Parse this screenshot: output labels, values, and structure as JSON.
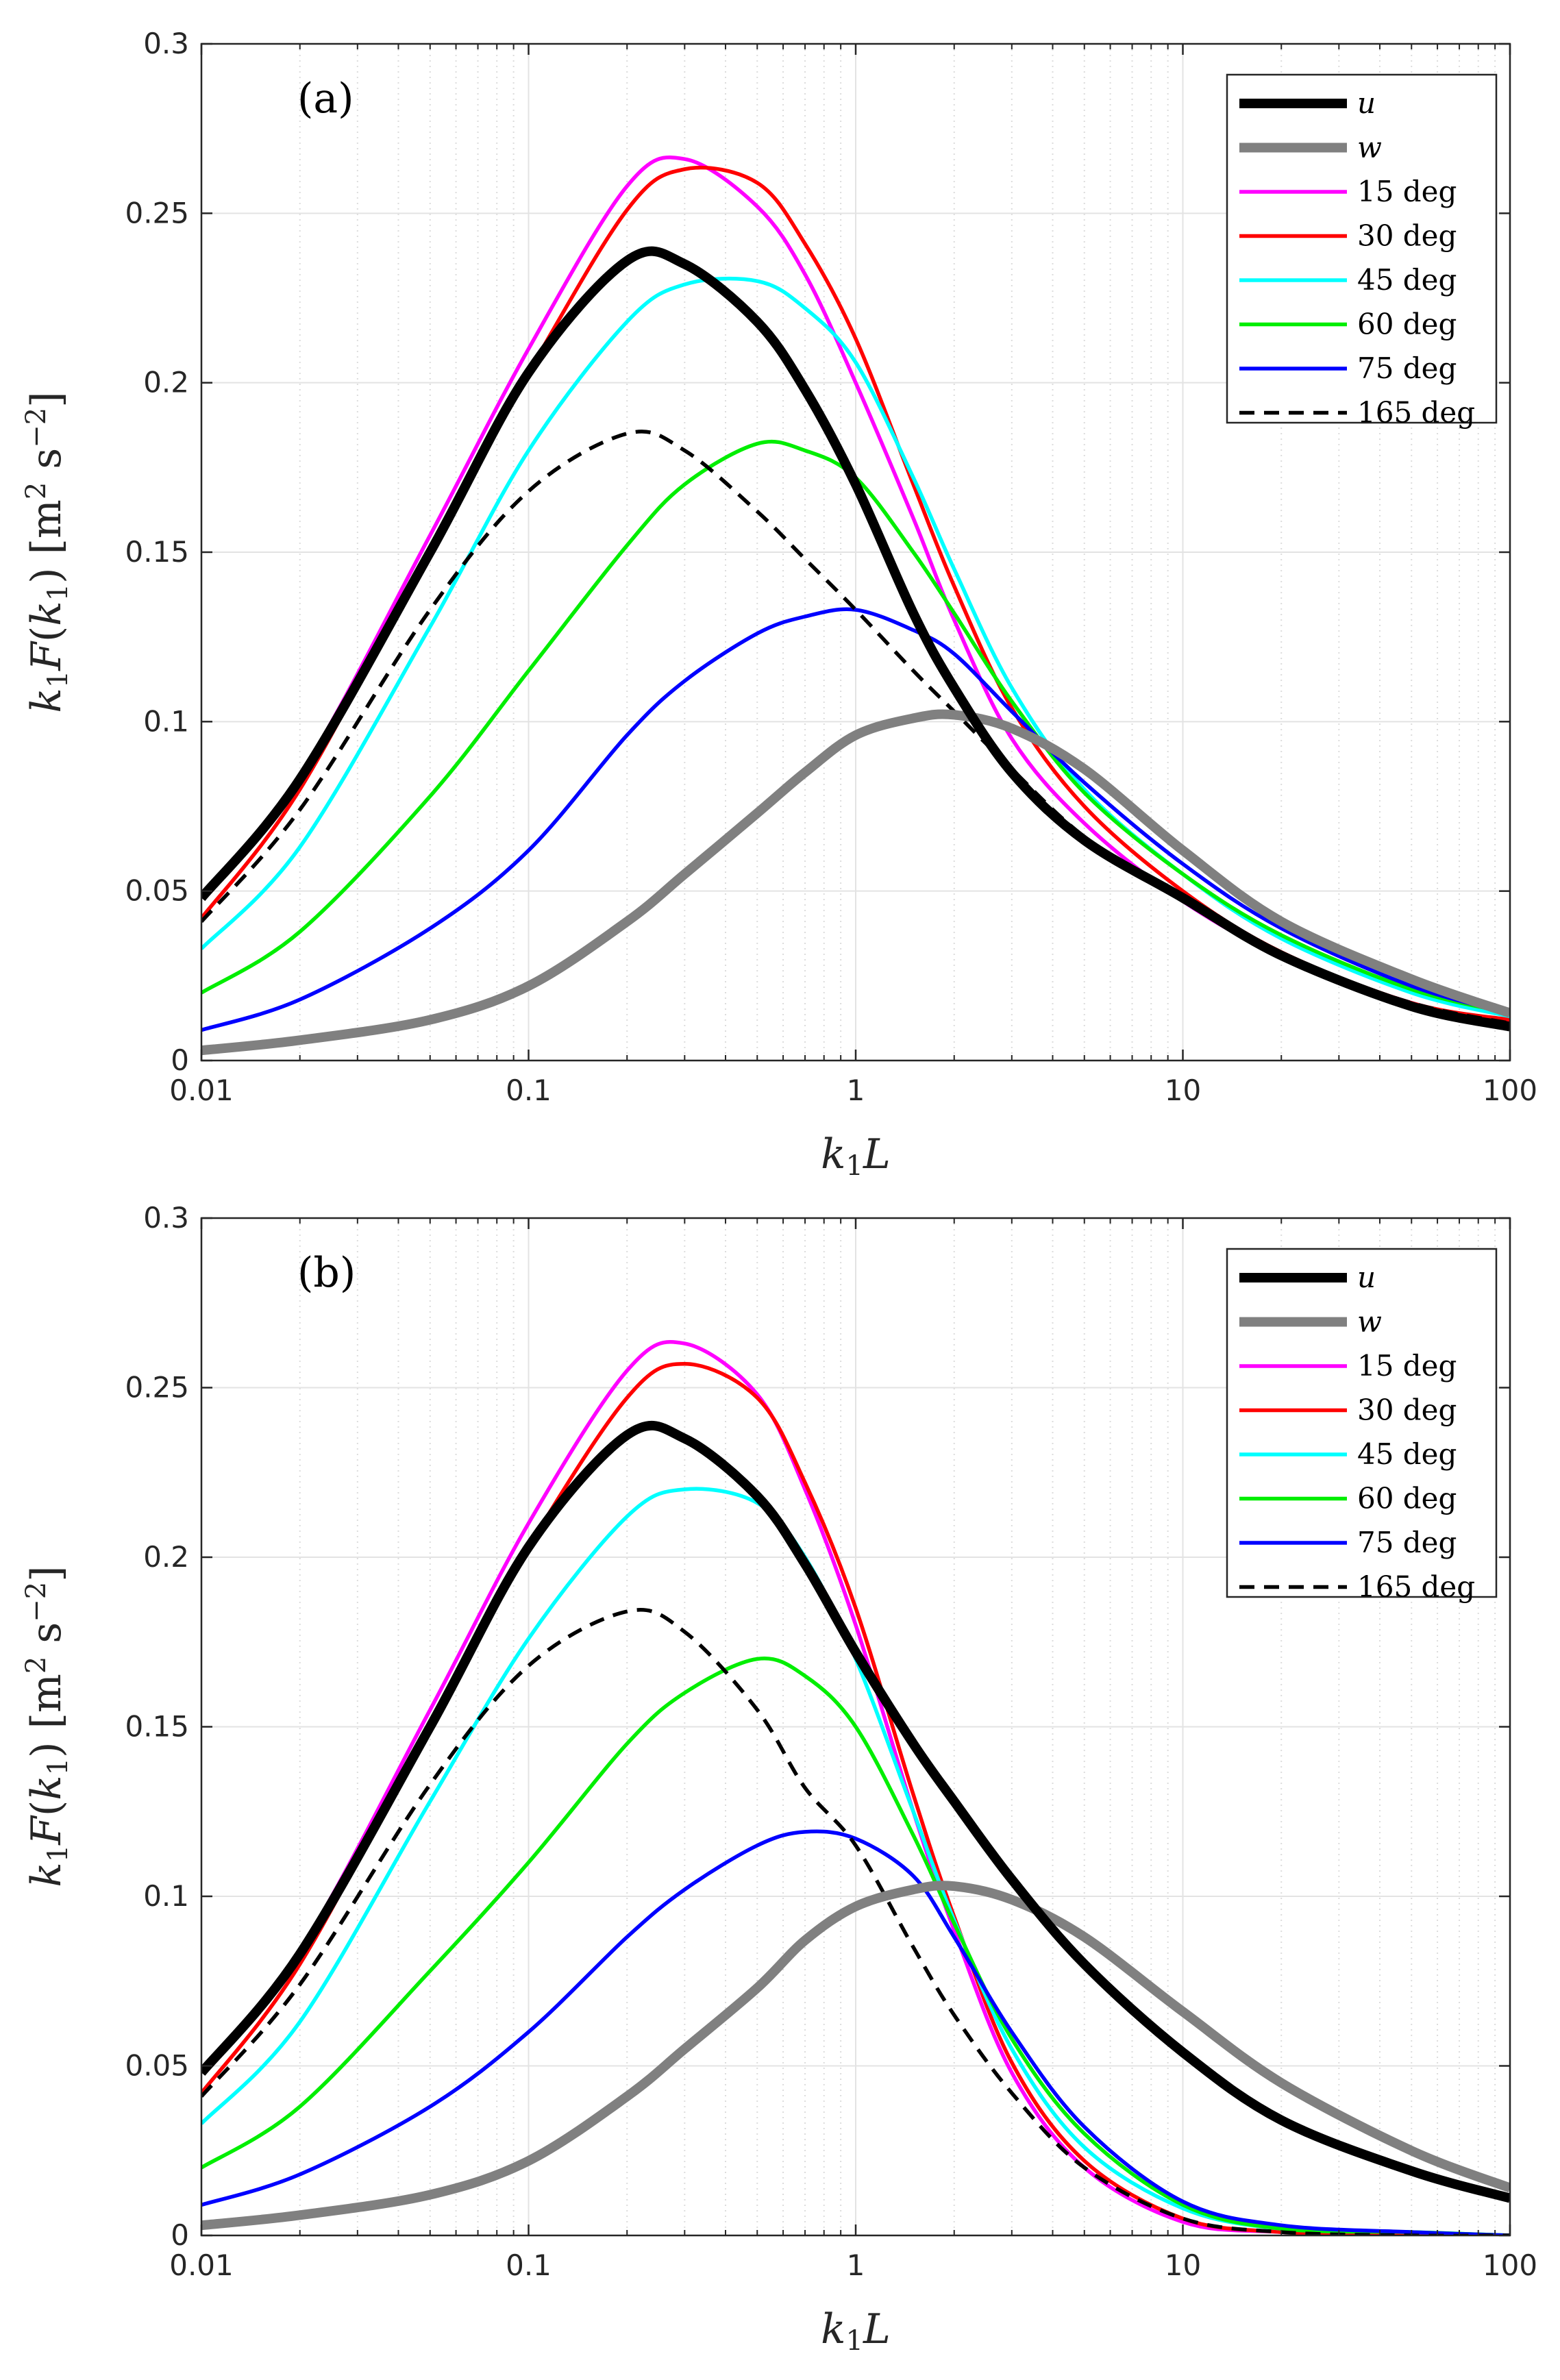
{
  "chart_data": [
    {
      "type": "line",
      "panel_label": "(a)",
      "x_scale": "log",
      "xlim": [
        0.01,
        100
      ],
      "ylim": [
        0,
        0.3
      ],
      "xlabel": "k1L",
      "ylabel": "k1F(k1) [m2 s-2]",
      "xticks": [
        "0.01",
        "0.1",
        "1",
        "10",
        "100"
      ],
      "yticks": [
        "0",
        "0.05",
        "0.1",
        "0.15",
        "0.2",
        "0.25",
        "0.3"
      ],
      "grid": true,
      "legend_position": "top-right",
      "x": [
        0.01,
        0.02,
        0.05,
        0.1,
        0.2,
        0.3,
        0.5,
        0.7,
        1,
        1.5,
        2,
        3,
        5,
        10,
        20,
        50,
        100
      ],
      "series": [
        {
          "name": "u",
          "color": "#000000",
          "width": "thick",
          "dash": "solid",
          "values": [
            0.048,
            0.083,
            0.15,
            0.203,
            0.236,
            0.235,
            0.218,
            0.198,
            0.17,
            0.132,
            0.11,
            0.085,
            0.065,
            0.048,
            0.031,
            0.016,
            0.01
          ]
        },
        {
          "name": "w",
          "color": "#808080",
          "width": "thick",
          "dash": "solid",
          "values": [
            0.003,
            0.006,
            0.012,
            0.022,
            0.041,
            0.055,
            0.073,
            0.085,
            0.096,
            0.101,
            0.102,
            0.098,
            0.086,
            0.062,
            0.041,
            0.024,
            0.014
          ]
        },
        {
          "name": "15 deg",
          "color": "#ff00ff",
          "width": "normal",
          "dash": "solid",
          "values": [
            0.049,
            0.084,
            0.155,
            0.21,
            0.258,
            0.266,
            0.252,
            0.232,
            0.2,
            0.16,
            0.13,
            0.095,
            0.07,
            0.047,
            0.031,
            0.017,
            0.011
          ]
        },
        {
          "name": "30 deg",
          "color": "#ff0000",
          "width": "normal",
          "dash": "solid",
          "values": [
            0.042,
            0.08,
            0.151,
            0.203,
            0.251,
            0.263,
            0.259,
            0.241,
            0.213,
            0.17,
            0.14,
            0.104,
            0.075,
            0.05,
            0.032,
            0.017,
            0.012
          ]
        },
        {
          "name": "45 deg",
          "color": "#00ffff",
          "width": "normal",
          "dash": "solid",
          "values": [
            0.033,
            0.063,
            0.128,
            0.18,
            0.218,
            0.229,
            0.23,
            0.222,
            0.206,
            0.172,
            0.145,
            0.11,
            0.08,
            0.055,
            0.036,
            0.02,
            0.013
          ]
        },
        {
          "name": "60 deg",
          "color": "#00ee00",
          "width": "normal",
          "dash": "solid",
          "values": [
            0.02,
            0.038,
            0.078,
            0.115,
            0.152,
            0.17,
            0.182,
            0.18,
            0.172,
            0.15,
            0.132,
            0.106,
            0.079,
            0.055,
            0.037,
            0.021,
            0.014
          ]
        },
        {
          "name": "75 deg",
          "color": "#0000ff",
          "width": "normal",
          "dash": "solid",
          "values": [
            0.009,
            0.018,
            0.039,
            0.062,
            0.096,
            0.112,
            0.126,
            0.131,
            0.133,
            0.127,
            0.12,
            0.103,
            0.082,
            0.058,
            0.039,
            0.022,
            0.014
          ]
        },
        {
          "name": "165 deg",
          "color": "#000000",
          "width": "normal",
          "dash": "dashed",
          "values": [
            0.041,
            0.074,
            0.133,
            0.168,
            0.185,
            0.18,
            0.162,
            0.148,
            0.133,
            0.115,
            0.103,
            0.086,
            0.066,
            0.047,
            0.031,
            0.017,
            0.011
          ]
        }
      ]
    },
    {
      "type": "line",
      "panel_label": "(b)",
      "x_scale": "log",
      "xlim": [
        0.01,
        100
      ],
      "ylim": [
        0,
        0.3
      ],
      "xlabel": "k1L",
      "ylabel": "k1F(k1) [m2 s-2]",
      "xticks": [
        "0.01",
        "0.1",
        "1",
        "10",
        "100"
      ],
      "yticks": [
        "0",
        "0.05",
        "0.1",
        "0.15",
        "0.2",
        "0.25",
        "0.3"
      ],
      "grid": true,
      "legend_position": "top-right",
      "x": [
        0.01,
        0.02,
        0.05,
        0.1,
        0.2,
        0.3,
        0.5,
        0.7,
        1,
        1.5,
        2,
        3,
        5,
        10,
        20,
        50,
        100
      ],
      "series": [
        {
          "name": "u",
          "color": "#000000",
          "width": "thick",
          "dash": "solid",
          "values": [
            0.048,
            0.083,
            0.15,
            0.203,
            0.236,
            0.235,
            0.218,
            0.198,
            0.172,
            0.145,
            0.128,
            0.105,
            0.08,
            0.054,
            0.034,
            0.019,
            0.011
          ]
        },
        {
          "name": "w",
          "color": "#808080",
          "width": "thick",
          "dash": "solid",
          "values": [
            0.003,
            0.006,
            0.012,
            0.022,
            0.041,
            0.055,
            0.073,
            0.087,
            0.097,
            0.102,
            0.103,
            0.099,
            0.088,
            0.066,
            0.045,
            0.025,
            0.014
          ]
        },
        {
          "name": "15 deg",
          "color": "#ff00ff",
          "width": "normal",
          "dash": "solid",
          "values": [
            0.049,
            0.084,
            0.155,
            0.21,
            0.255,
            0.263,
            0.248,
            0.22,
            0.18,
            0.125,
            0.09,
            0.048,
            0.02,
            0.004,
            0.001,
            0.0,
            0.0
          ]
        },
        {
          "name": "30 deg",
          "color": "#ff0000",
          "width": "normal",
          "dash": "solid",
          "values": [
            0.042,
            0.08,
            0.151,
            0.203,
            0.247,
            0.257,
            0.247,
            0.222,
            0.185,
            0.13,
            0.094,
            0.051,
            0.022,
            0.005,
            0.001,
            0.0,
            0.0
          ]
        },
        {
          "name": "45 deg",
          "color": "#00ffff",
          "width": "normal",
          "dash": "solid",
          "values": [
            0.033,
            0.063,
            0.128,
            0.176,
            0.212,
            0.22,
            0.216,
            0.2,
            0.17,
            0.125,
            0.093,
            0.055,
            0.026,
            0.008,
            0.002,
            0.001,
            0.0
          ]
        },
        {
          "name": "60 deg",
          "color": "#00ee00",
          "width": "normal",
          "dash": "solid",
          "values": [
            0.02,
            0.038,
            0.078,
            0.11,
            0.145,
            0.16,
            0.17,
            0.165,
            0.15,
            0.118,
            0.092,
            0.058,
            0.03,
            0.009,
            0.002,
            0.001,
            0.0
          ]
        },
        {
          "name": "75 deg",
          "color": "#0000ff",
          "width": "normal",
          "dash": "solid",
          "values": [
            0.009,
            0.018,
            0.038,
            0.06,
            0.088,
            0.102,
            0.115,
            0.119,
            0.117,
            0.106,
            0.088,
            0.06,
            0.032,
            0.01,
            0.003,
            0.001,
            0.0
          ]
        },
        {
          "name": "165 deg",
          "color": "#000000",
          "width": "normal",
          "dash": "dashed",
          "values": [
            0.041,
            0.074,
            0.133,
            0.168,
            0.184,
            0.178,
            0.155,
            0.132,
            0.115,
            0.085,
            0.065,
            0.042,
            0.02,
            0.005,
            0.001,
            0.0,
            0.0
          ]
        }
      ]
    }
  ]
}
